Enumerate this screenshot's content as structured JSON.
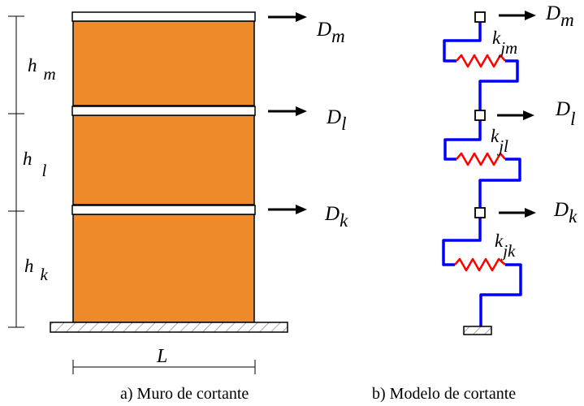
{
  "figure": {
    "colors": {
      "wall_fill": "#EE8A2A",
      "outline": "#000000",
      "spring": "#FF0000",
      "link": "#0000FF",
      "hatch": "#555555"
    },
    "left": {
      "caption": "a) Muro de cortante",
      "length_label": "L",
      "storeys": [
        {
          "h_main": "h",
          "h_sub": "m",
          "force_main": "D",
          "force_sub": "m"
        },
        {
          "h_main": "h",
          "h_sub": "l",
          "force_main": "D",
          "force_sub": "l"
        },
        {
          "h_main": "h",
          "h_sub": "k",
          "force_main": "D",
          "force_sub": "k"
        }
      ]
    },
    "right": {
      "caption": "b) Modelo de cortante",
      "levels": [
        {
          "force_main": "D",
          "force_sub": "m",
          "spring_main": "k",
          "spring_sub": "jm"
        },
        {
          "force_main": "D",
          "force_sub": "l",
          "spring_main": "k",
          "spring_sub": "jl"
        },
        {
          "force_main": "D",
          "force_sub": "k",
          "spring_main": "k",
          "spring_sub": "jk"
        }
      ]
    }
  }
}
